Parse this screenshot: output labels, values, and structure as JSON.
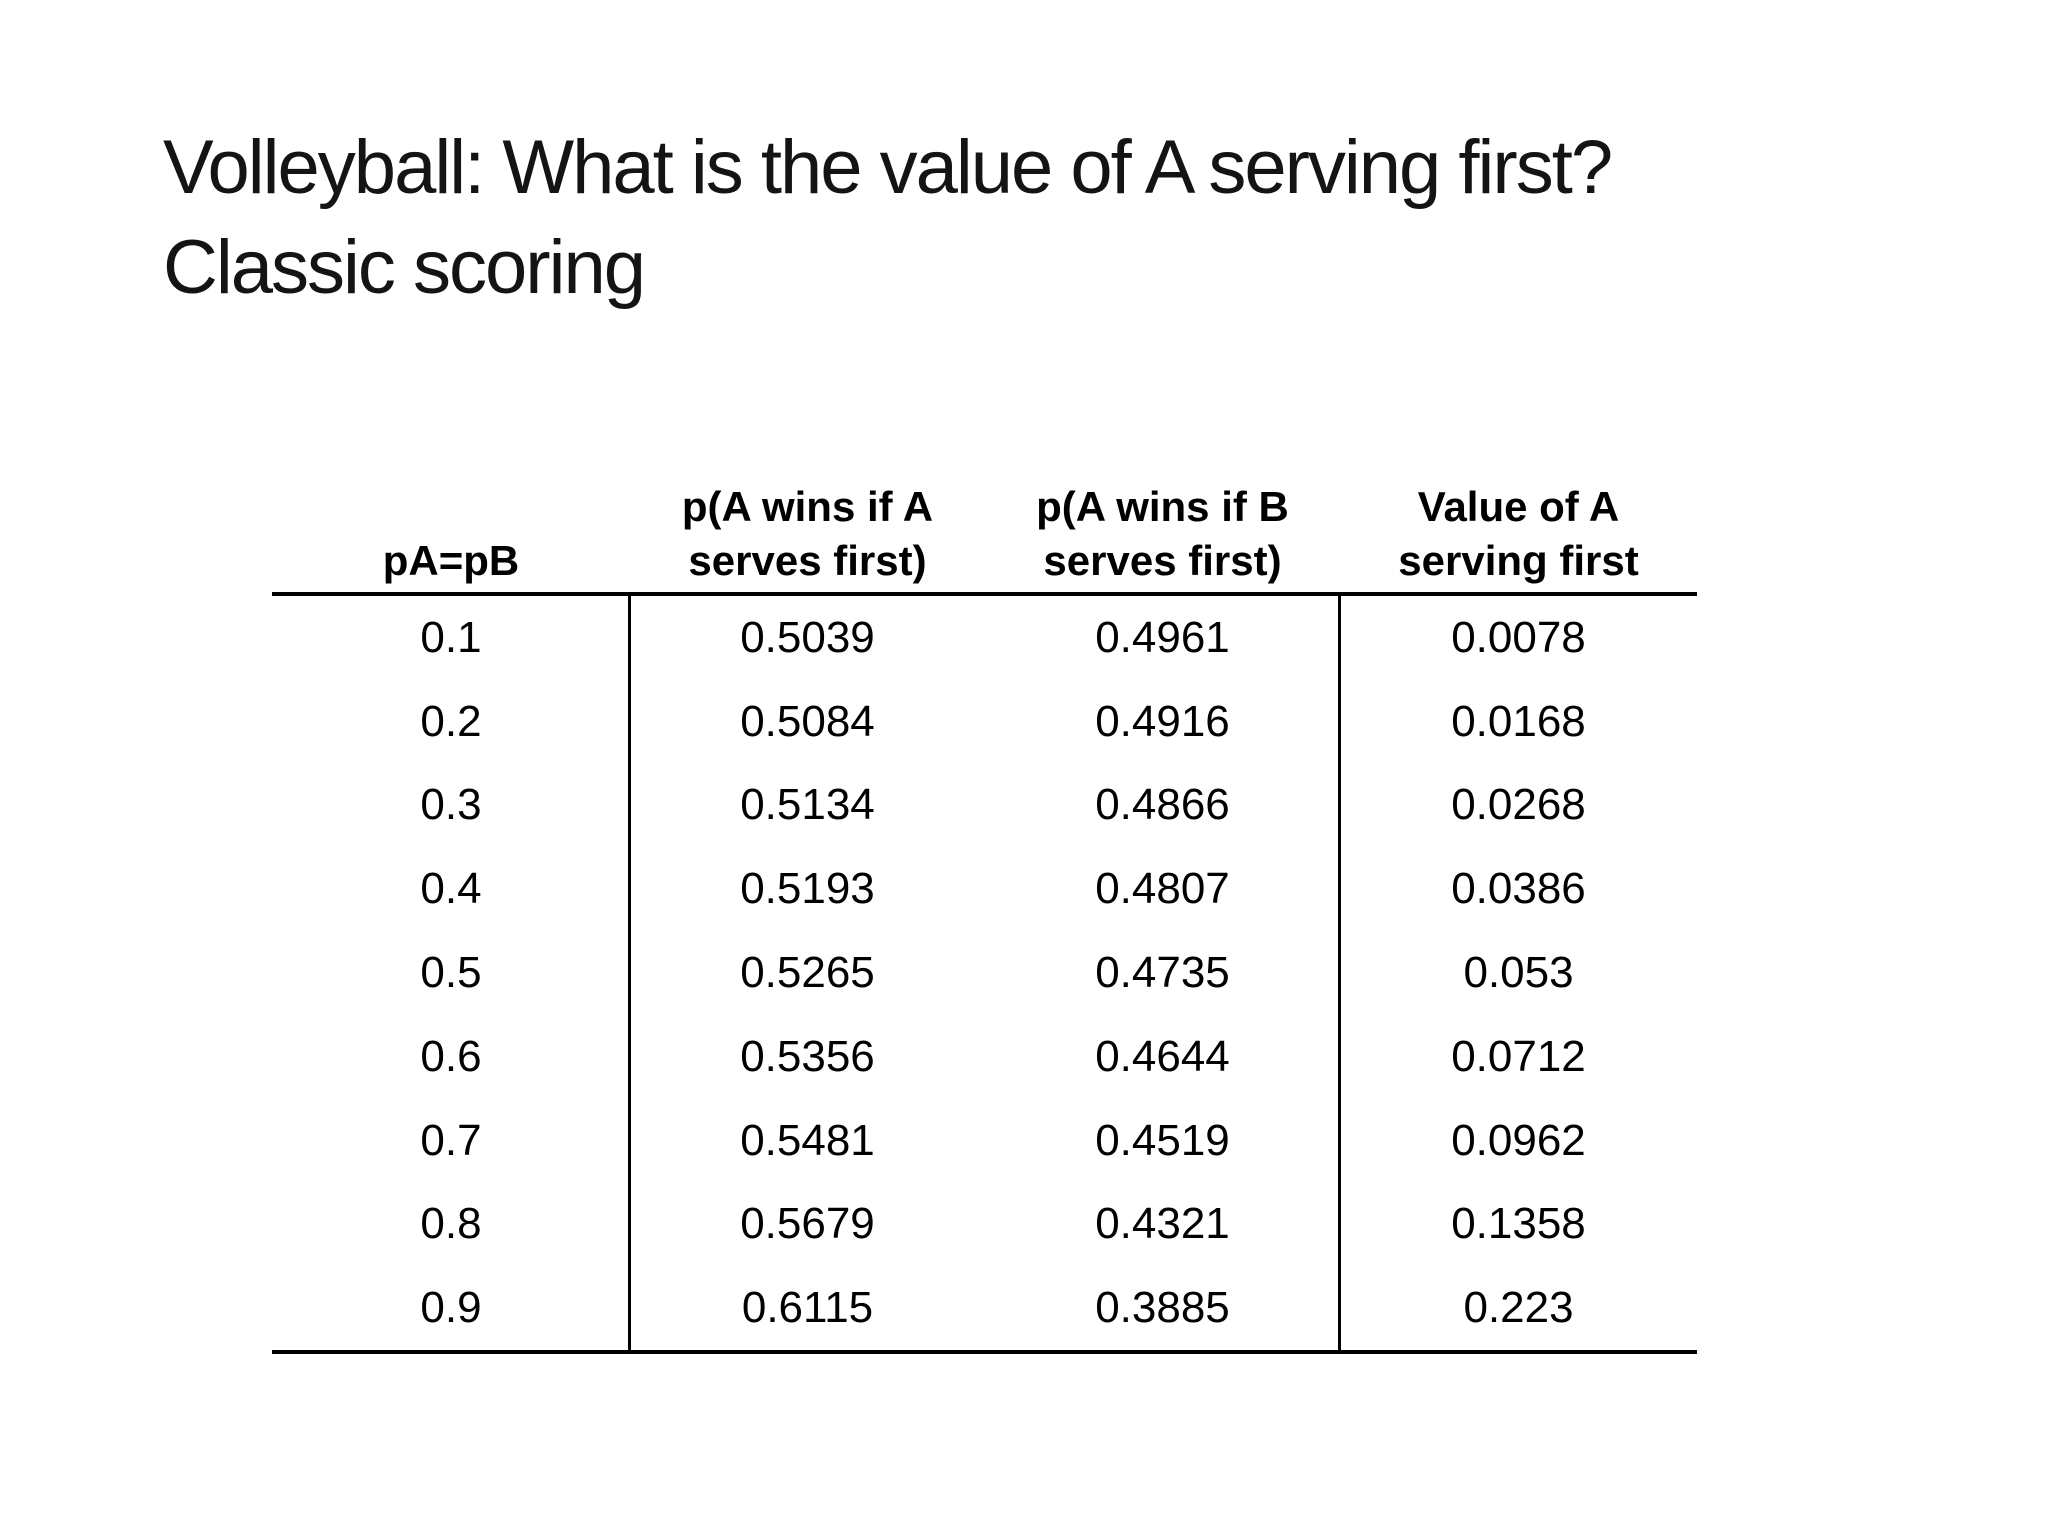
{
  "slide": {
    "title_line1": "Volleyball: What is the value of A serving first?",
    "title_line2": "Classic scoring"
  },
  "table": {
    "columns": [
      {
        "line1": "",
        "line2": "pA=pB"
      },
      {
        "line1": "p(A wins if A",
        "line2": "serves first)"
      },
      {
        "line1": "p(A wins if B",
        "line2": "serves first)"
      },
      {
        "line1": "Value of A",
        "line2": "serving first"
      }
    ],
    "rows": [
      [
        "0.1",
        "0.5039",
        "0.4961",
        "0.0078"
      ],
      [
        "0.2",
        "0.5084",
        "0.4916",
        "0.0168"
      ],
      [
        "0.3",
        "0.5134",
        "0.4866",
        "0.0268"
      ],
      [
        "0.4",
        "0.5193",
        "0.4807",
        "0.0386"
      ],
      [
        "0.5",
        "0.5265",
        "0.4735",
        "0.053"
      ],
      [
        "0.6",
        "0.5356",
        "0.4644",
        "0.0712"
      ],
      [
        "0.7",
        "0.5481",
        "0.4519",
        "0.0962"
      ],
      [
        "0.8",
        "0.5679",
        "0.4321",
        "0.1358"
      ],
      [
        "0.9",
        "0.6115",
        "0.3885",
        "0.223"
      ]
    ],
    "colors": {
      "text": "#000000",
      "title": "#141414",
      "rule": "#000000",
      "background": "#ffffff"
    }
  }
}
